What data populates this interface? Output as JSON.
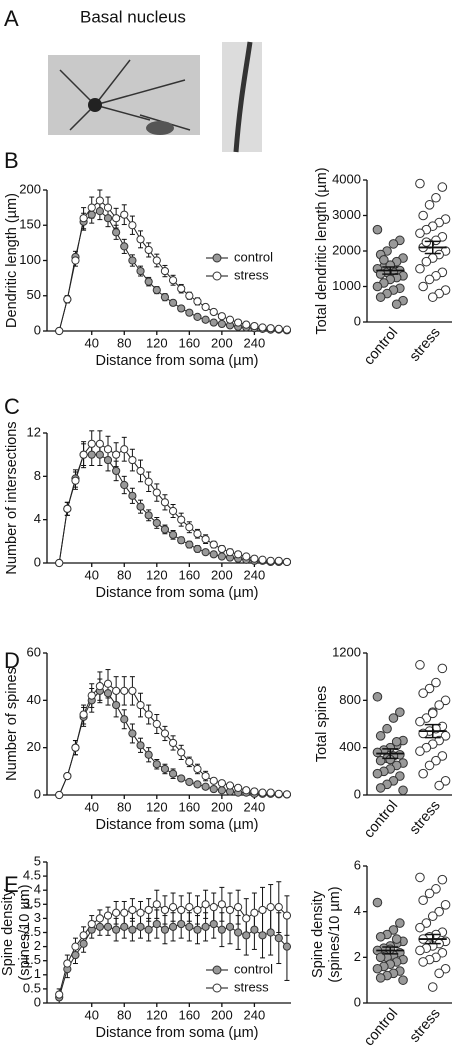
{
  "panel_labels": [
    "A",
    "B",
    "C",
    "D",
    "E"
  ],
  "panel_a": {
    "title": "Basal nucleus"
  },
  "chart_data": [
    {
      "type": "line",
      "ylabel": [
        "Dendritic length (µm)"
      ],
      "xlabel": "Distance from soma (µm)",
      "legend": "right",
      "x": [
        0,
        10,
        20,
        30,
        40,
        50,
        60,
        70,
        80,
        90,
        100,
        110,
        120,
        130,
        140,
        150,
        160,
        170,
        180,
        190,
        200,
        210,
        220,
        230,
        240,
        250,
        260,
        270,
        280
      ],
      "xlim": [
        -15,
        285
      ],
      "xticks": [
        40,
        80,
        120,
        160,
        200,
        240
      ],
      "ylim": [
        0,
        200
      ],
      "yticks": [
        0,
        50,
        100,
        150,
        200
      ],
      "series": [
        {
          "name": "control",
          "color": "#999999",
          "values": [
            0,
            45,
            105,
            155,
            165,
            170,
            160,
            140,
            120,
            100,
            85,
            70,
            58,
            48,
            40,
            32,
            26,
            20,
            16,
            12,
            10,
            8,
            6,
            5,
            4,
            3,
            2,
            2,
            1
          ],
          "errors": [
            0,
            5,
            8,
            12,
            12,
            12,
            12,
            10,
            10,
            8,
            7,
            6,
            5,
            5,
            4,
            4,
            3,
            3,
            2,
            2,
            2,
            2,
            1,
            1,
            1,
            1,
            1,
            1,
            1
          ]
        },
        {
          "name": "stress",
          "color": "#ffffff",
          "values": [
            0,
            45,
            100,
            160,
            175,
            185,
            175,
            160,
            165,
            150,
            130,
            115,
            100,
            85,
            72,
            60,
            50,
            42,
            34,
            27,
            21,
            16,
            12,
            9,
            7,
            5,
            4,
            3,
            2
          ],
          "errors": [
            0,
            5,
            8,
            15,
            15,
            15,
            15,
            14,
            14,
            13,
            12,
            10,
            9,
            8,
            7,
            6,
            5,
            5,
            4,
            4,
            3,
            3,
            2,
            2,
            2,
            1,
            1,
            1,
            1
          ]
        }
      ]
    },
    {
      "type": "dot",
      "ylabel": [
        "Total dendritic length (µm)"
      ],
      "ylim": [
        0,
        4000
      ],
      "yticks": [
        0,
        1000,
        2000,
        3000,
        4000
      ],
      "series": [
        {
          "name": "control",
          "color": "#999999",
          "values": [
            2600,
            2300,
            2200,
            2000,
            1900,
            1800,
            1700,
            1600,
            1550,
            1500,
            1450,
            1400,
            1400,
            1350,
            1300,
            1250,
            1200,
            1100,
            1000,
            950,
            900,
            800,
            700,
            600,
            500,
            1600,
            1750
          ],
          "mean": 1450,
          "sem": 100
        },
        {
          "name": "stress",
          "color": "#ffffff",
          "values": [
            3900,
            3800,
            3500,
            3300,
            3000,
            2900,
            2800,
            2700,
            2600,
            2500,
            2400,
            2300,
            2200,
            2100,
            2000,
            1900,
            1800,
            1700,
            1500,
            1400,
            1300,
            1200,
            1000,
            900,
            800,
            700,
            2250
          ],
          "mean": 2100,
          "sem": 170
        }
      ]
    },
    {
      "type": "line",
      "ylabel": [
        "Number of intersections"
      ],
      "xlabel": "Distance from soma (µm)",
      "x": [
        0,
        10,
        20,
        30,
        40,
        50,
        60,
        70,
        80,
        90,
        100,
        110,
        120,
        130,
        140,
        150,
        160,
        170,
        180,
        190,
        200,
        210,
        220,
        230,
        240,
        250,
        260,
        270,
        280
      ],
      "xlim": [
        -15,
        285
      ],
      "xticks": [
        40,
        80,
        120,
        160,
        200,
        240
      ],
      "ylim": [
        0,
        12
      ],
      "yticks": [
        0,
        4,
        8,
        12
      ],
      "series": [
        {
          "name": "control",
          "color": "#999999",
          "values": [
            0,
            5,
            7.8,
            10,
            10,
            10,
            9.5,
            8.5,
            7.2,
            6.2,
            5.2,
            4.4,
            3.7,
            3.1,
            2.6,
            2.1,
            1.7,
            1.3,
            1,
            0.8,
            0.6,
            0.5,
            0.4,
            0.3,
            0.2,
            0.2,
            0.1,
            0.1,
            0.1
          ],
          "errors": [
            0,
            0.6,
            0.8,
            1,
            1,
            1,
            1,
            0.9,
            0.8,
            0.7,
            0.6,
            0.5,
            0.5,
            0.4,
            0.4,
            0.3,
            0.3,
            0.3,
            0.2,
            0.2,
            0.2,
            0.2,
            0.1,
            0.1,
            0.1,
            0.1,
            0.1,
            0.1,
            0.1
          ]
        },
        {
          "name": "stress",
          "color": "#ffffff",
          "values": [
            0,
            5,
            7.6,
            10,
            11,
            11,
            10.5,
            10,
            10.5,
            9.5,
            8.5,
            7.5,
            6.5,
            5.6,
            4.8,
            4,
            3.3,
            2.7,
            2.2,
            1.7,
            1.3,
            1,
            0.8,
            0.6,
            0.4,
            0.3,
            0.2,
            0.2,
            0.1
          ],
          "errors": [
            0,
            0.6,
            0.8,
            1.2,
            1.2,
            1.2,
            1.2,
            1.1,
            1.1,
            1,
            1,
            0.9,
            0.8,
            0.7,
            0.6,
            0.6,
            0.5,
            0.4,
            0.4,
            0.3,
            0.3,
            0.3,
            0.2,
            0.2,
            0.2,
            0.1,
            0.1,
            0.1,
            0.1
          ]
        }
      ]
    },
    {
      "type": "line",
      "ylabel": [
        "Number of spines"
      ],
      "xlabel": "Distance from soma (µm)",
      "x": [
        0,
        10,
        20,
        30,
        40,
        50,
        60,
        70,
        80,
        90,
        100,
        110,
        120,
        130,
        140,
        150,
        160,
        170,
        180,
        190,
        200,
        210,
        220,
        230,
        240,
        250,
        260,
        270,
        280
      ],
      "xlim": [
        -15,
        285
      ],
      "xticks": [
        40,
        80,
        120,
        160,
        200,
        240
      ],
      "ylim": [
        0,
        60
      ],
      "yticks": [
        0,
        20,
        40,
        60
      ],
      "series": [
        {
          "name": "control",
          "color": "#999999",
          "values": [
            0,
            8,
            20,
            33,
            40,
            44,
            43,
            38,
            32,
            26,
            21,
            17,
            13,
            11,
            9,
            7,
            5.5,
            4.5,
            3.5,
            2.5,
            2,
            1.5,
            1,
            1,
            0.5,
            0.5,
            0.5,
            0.3,
            0.2
          ],
          "errors": [
            0,
            1,
            3,
            4,
            5,
            5,
            5,
            5,
            4,
            4,
            3,
            3,
            2,
            2,
            2,
            1,
            1,
            1,
            1,
            1,
            1,
            1,
            0.5,
            0.5,
            0.5,
            0.5,
            0.5,
            0.5,
            0.5
          ]
        },
        {
          "name": "stress",
          "color": "#ffffff",
          "values": [
            0,
            8,
            20,
            34,
            42,
            46,
            47,
            44,
            44,
            44,
            38,
            34,
            30,
            26,
            22,
            18,
            14,
            11,
            8,
            6,
            5,
            4,
            3,
            2,
            1.5,
            1,
            1,
            0.5,
            0.3
          ],
          "errors": [
            0,
            1,
            3,
            4,
            5,
            6,
            6,
            6,
            6,
            6,
            5,
            4,
            4,
            3,
            3,
            3,
            2,
            2,
            2,
            1,
            1,
            1,
            1,
            1,
            0.5,
            0.5,
            0.5,
            0.5,
            0.5
          ]
        }
      ]
    },
    {
      "type": "dot",
      "ylabel": [
        "Total spines"
      ],
      "ylim": [
        0,
        1200
      ],
      "yticks": [
        0,
        400,
        800,
        1200
      ],
      "series": [
        {
          "name": "control",
          "color": "#999999",
          "values": [
            830,
            700,
            650,
            560,
            500,
            460,
            420,
            400,
            380,
            360,
            340,
            330,
            310,
            290,
            270,
            250,
            220,
            200,
            180,
            160,
            120,
            90,
            60,
            40,
            450,
            300
          ],
          "mean": 350,
          "sem": 40
        },
        {
          "name": "stress",
          "color": "#ffffff",
          "values": [
            1100,
            1070,
            950,
            900,
            860,
            800,
            760,
            700,
            650,
            620,
            580,
            560,
            540,
            520,
            500,
            460,
            430,
            400,
            370,
            330,
            290,
            250,
            180,
            120,
            80,
            690
          ],
          "mean": 540,
          "sem": 55
        }
      ]
    },
    {
      "type": "line",
      "ylabel": [
        "Spine density",
        "(spines/10 µm)"
      ],
      "xlabel": "Distance from soma (µm)",
      "legend": "lower right",
      "x": [
        0,
        10,
        20,
        30,
        40,
        50,
        60,
        70,
        80,
        90,
        100,
        110,
        120,
        130,
        140,
        150,
        160,
        170,
        180,
        190,
        200,
        210,
        220,
        230,
        240,
        250,
        260,
        270,
        280
      ],
      "xlim": [
        -15,
        285
      ],
      "xticks": [
        40,
        80,
        120,
        160,
        200,
        240
      ],
      "ylim": [
        0,
        5
      ],
      "yticks": [
        0,
        0.5,
        1,
        1.5,
        2,
        2.5,
        3,
        3.5,
        4,
        4.5,
        5
      ],
      "series": [
        {
          "name": "control",
          "color": "#999999",
          "values": [
            0.2,
            1.2,
            1.7,
            2.1,
            2.6,
            2.7,
            2.7,
            2.6,
            2.7,
            2.6,
            2.7,
            2.6,
            2.8,
            2.6,
            2.7,
            2.8,
            2.7,
            2.6,
            2.7,
            2.8,
            2.6,
            2.7,
            2.5,
            2.4,
            2.6,
            2.4,
            2.5,
            2.3,
            2
          ],
          "errors": [
            0.2,
            0.3,
            0.3,
            0.3,
            0.3,
            0.3,
            0.3,
            0.4,
            0.4,
            0.4,
            0.4,
            0.4,
            0.5,
            0.5,
            0.5,
            0.5,
            0.5,
            0.5,
            0.5,
            0.5,
            0.6,
            0.6,
            0.6,
            0.7,
            0.7,
            0.8,
            0.8,
            0.9,
            1.2
          ]
        },
        {
          "name": "stress",
          "color": "#ffffff",
          "values": [
            0.3,
            1.4,
            2,
            2.4,
            2.8,
            3,
            3.1,
            3.2,
            3.2,
            3.3,
            3.2,
            3.3,
            3.5,
            3.3,
            3.4,
            3.3,
            3.4,
            3.3,
            3.5,
            3.4,
            3.5,
            3.3,
            3.4,
            3,
            3.2,
            3.3,
            3.4,
            3.4,
            3.1
          ],
          "errors": [
            0.2,
            0.3,
            0.3,
            0.3,
            0.3,
            0.3,
            0.3,
            0.4,
            0.4,
            0.4,
            0.4,
            0.4,
            0.5,
            0.5,
            0.5,
            0.5,
            0.5,
            0.5,
            0.5,
            0.5,
            0.6,
            0.6,
            0.6,
            0.7,
            0.7,
            0.8,
            0.8,
            0.9,
            0.7
          ]
        }
      ]
    },
    {
      "type": "dot",
      "ylabel": [
        "Spine density",
        "(spines/10 µm)"
      ],
      "ylim": [
        0,
        6
      ],
      "yticks": [
        0,
        2,
        4,
        6
      ],
      "series": [
        {
          "name": "control",
          "color": "#999999",
          "values": [
            4.4,
            3.5,
            3.2,
            3,
            2.9,
            2.7,
            2.6,
            2.5,
            2.4,
            2.3,
            2.2,
            2.1,
            2,
            2,
            1.9,
            1.8,
            1.7,
            1.6,
            1.5,
            1.4,
            1.3,
            1.2,
            1.1,
            1,
            2.8,
            2.35
          ],
          "mean": 2.3,
          "sem": 0.15
        },
        {
          "name": "stress",
          "color": "#ffffff",
          "values": [
            5.5,
            5.4,
            5,
            4.8,
            4.5,
            4.3,
            4,
            3.8,
            3.5,
            3.3,
            3.1,
            3,
            2.9,
            2.8,
            2.7,
            2.6,
            2.5,
            2.4,
            2.3,
            2.2,
            2,
            1.9,
            1.8,
            1.5,
            1.3,
            0.7
          ],
          "mean": 2.8,
          "sem": 0.2
        }
      ]
    }
  ]
}
